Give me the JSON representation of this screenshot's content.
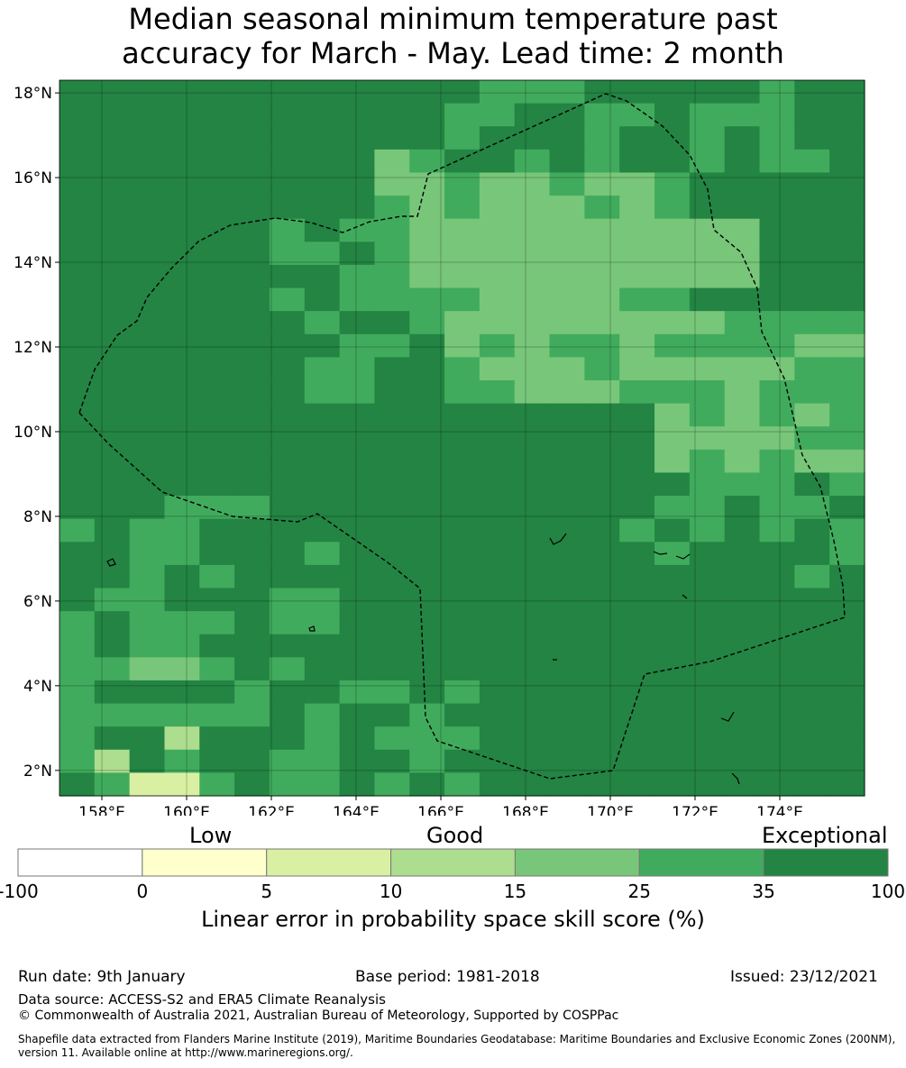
{
  "title": {
    "line1": "Median seasonal minimum temperature past",
    "line2": "accuracy for March - May. Lead time: 2 month"
  },
  "map": {
    "lon_range": [
      157,
      176
    ],
    "lat_range": [
      1.4,
      18.3
    ],
    "lon_ticks": [
      "158°E",
      "160°E",
      "162°E",
      "164°E",
      "166°E",
      "168°E",
      "170°E",
      "172°E",
      "174°E"
    ],
    "lat_ticks": [
      "18°N",
      "16°N",
      "14°N",
      "12°N",
      "10°N",
      "8°N",
      "6°N",
      "4°N",
      "2°N"
    ],
    "grid": true,
    "colors": [
      "#ffffff",
      "#ffffcc",
      "#d9f0a3",
      "#addd8e",
      "#78c679",
      "#41ab5d",
      "#238443"
    ],
    "cells_note_legend": "0=-100..0, 1=0..5, 2=5..10, 3=10..15, 4=15..25, 5=25..35, 6=35..100"
  },
  "colorbar": {
    "categories": [
      "Low",
      "Good",
      "Exceptional"
    ],
    "ticks": [
      "-100",
      "0",
      "5",
      "10",
      "15",
      "25",
      "35",
      "100"
    ],
    "label": "Linear error in probability space skill score (%)"
  },
  "footer": {
    "run_date": "Run date: 9th January",
    "base_period": "Base period: 1981-2018",
    "issued": "Issued: 23/12/2021",
    "data_source": "Data source: ACCESS-S2 and ERA5 Climate Reanalysis",
    "copyright": "© Commonwealth of Australia 2021, Australian Bureau of Meteorology, Supported by COSPPac",
    "shapefile": "Shapefile data extracted from Flanders Marine Institute (2019), Maritime Boundaries Geodatabase: Maritime Boundaries and Exclusive Economic Zones (200NM), version 11. Available online at http://www.marineregions.org/."
  }
}
